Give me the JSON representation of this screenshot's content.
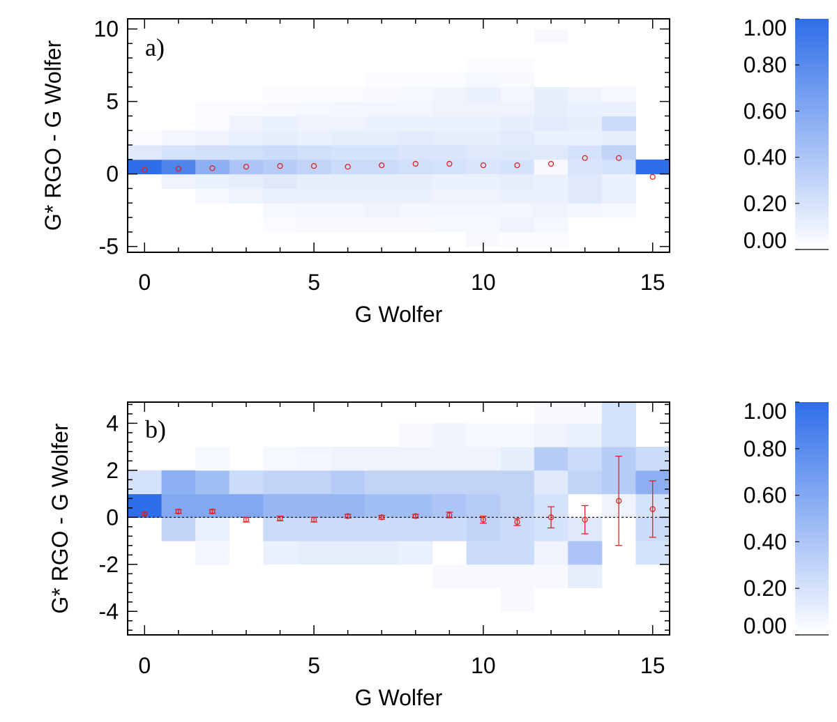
{
  "colors": {
    "cell": "#2f6ee9",
    "marker": "#e02020",
    "axis": "#000000"
  },
  "chart_data": [
    {
      "type": "heatmap",
      "panel_label": "a)",
      "xlabel": "G Wolfer",
      "ylabel": "G* RGO - G Wolfer",
      "xlim": [
        -0.5,
        15.5
      ],
      "ylim": [
        -5.4,
        10.7
      ],
      "xticks": [
        0,
        5,
        10,
        15
      ],
      "xtick_labels": [
        "0",
        "5",
        "10",
        "15"
      ],
      "yticks": [
        -5,
        0,
        5,
        10
      ],
      "ytick_labels": [
        "-5",
        "0",
        "5",
        "10"
      ],
      "cell_height": 1,
      "y_start": -5,
      "columns": [
        [
          0,
          0,
          0,
          0,
          0,
          1.0,
          0.15,
          0.03,
          0,
          0,
          0,
          0,
          0,
          0,
          0,
          0
        ],
        [
          0,
          0,
          0,
          0,
          0.08,
          0.85,
          0.2,
          0.06,
          0,
          0,
          0,
          0,
          0,
          0,
          0,
          0
        ],
        [
          0,
          0,
          0,
          0.05,
          0.1,
          0.55,
          0.22,
          0.08,
          0.03,
          0.03,
          0,
          0,
          0,
          0,
          0,
          0
        ],
        [
          0,
          0,
          0,
          0.08,
          0.12,
          0.4,
          0.22,
          0.1,
          0.08,
          0.03,
          0,
          0,
          0,
          0,
          0,
          0
        ],
        [
          0,
          0.03,
          0.05,
          0.1,
          0.15,
          0.35,
          0.25,
          0.12,
          0.1,
          0.04,
          0.02,
          0,
          0,
          0,
          0,
          0
        ],
        [
          0,
          0.04,
          0.06,
          0.1,
          0.12,
          0.3,
          0.22,
          0.1,
          0.08,
          0.05,
          0.03,
          0,
          0,
          0,
          0,
          0
        ],
        [
          0,
          0.04,
          0.06,
          0.1,
          0.12,
          0.25,
          0.2,
          0.12,
          0.08,
          0.06,
          0.03,
          0,
          0,
          0,
          0,
          0
        ],
        [
          0,
          0.04,
          0.07,
          0.1,
          0.12,
          0.25,
          0.2,
          0.12,
          0.1,
          0.06,
          0.04,
          0.02,
          0,
          0,
          0,
          0
        ],
        [
          0,
          0.04,
          0.06,
          0.1,
          0.12,
          0.22,
          0.18,
          0.14,
          0.1,
          0.06,
          0.05,
          0.03,
          0,
          0,
          0,
          0
        ],
        [
          0,
          0.05,
          0.06,
          0.08,
          0.1,
          0.2,
          0.18,
          0.12,
          0.1,
          0.08,
          0.07,
          0.03,
          0,
          0,
          0,
          0
        ],
        [
          0.04,
          0.05,
          0.06,
          0.08,
          0.1,
          0.18,
          0.15,
          0.12,
          0.1,
          0.08,
          0.1,
          0.05,
          0.02,
          0,
          0,
          0
        ],
        [
          0.02,
          0.08,
          0.06,
          0.1,
          0.12,
          0.2,
          0.16,
          0.14,
          0.12,
          0.08,
          0.06,
          0.04,
          0.02,
          0,
          0,
          0
        ],
        [
          0.02,
          0.05,
          0.08,
          0.1,
          0.1,
          0.04,
          0.15,
          0.1,
          0.14,
          0.12,
          0.12,
          0,
          0,
          0,
          0.04,
          0
        ],
        [
          0,
          0,
          0.06,
          0.15,
          0.15,
          0.18,
          0.2,
          0.1,
          0.12,
          0.1,
          0.08,
          0,
          0,
          0,
          0,
          0
        ],
        [
          0,
          0,
          0.05,
          0.1,
          0.1,
          0.2,
          0.3,
          0.12,
          0.25,
          0.1,
          0.05,
          0,
          0,
          0,
          0,
          0
        ],
        [
          0,
          0,
          0,
          0,
          0,
          1.0,
          0,
          0,
          0,
          0,
          0,
          0,
          0,
          0,
          0,
          0
        ]
      ],
      "points": {
        "x": [
          0,
          1,
          2,
          3,
          4,
          5,
          6,
          7,
          8,
          9,
          10,
          11,
          12,
          13,
          14,
          15
        ],
        "y": [
          0.3,
          0.35,
          0.4,
          0.5,
          0.55,
          0.55,
          0.5,
          0.6,
          0.7,
          0.7,
          0.6,
          0.6,
          0.7,
          1.1,
          1.1,
          -0.2
        ]
      },
      "colorbar": {
        "ticks": [
          0.0,
          0.2,
          0.4,
          0.6,
          0.8,
          1.0
        ],
        "labels": [
          "0.00",
          "0.20",
          "0.40",
          "0.60",
          "0.80",
          "1.00"
        ]
      }
    },
    {
      "type": "heatmap",
      "panel_label": "b)",
      "xlabel": "G Wolfer",
      "ylabel": "G* RGO - G Wolfer",
      "xlim": [
        -0.5,
        15.5
      ],
      "ylim": [
        -5,
        4.9
      ],
      "xticks": [
        0,
        5,
        10,
        15
      ],
      "xtick_labels": [
        "0",
        "5",
        "10",
        "15"
      ],
      "yticks": [
        -4,
        -2,
        0,
        2,
        4
      ],
      "ytick_labels": [
        "-4",
        "-2",
        "0",
        "2",
        "4"
      ],
      "cell_height": 1,
      "y_start": -4,
      "zero_line": true,
      "columns": [
        [
          0,
          0,
          0,
          0,
          1.0,
          0.2,
          0,
          0,
          0
        ],
        [
          0,
          0,
          0,
          0.3,
          0.6,
          0.55,
          0,
          0,
          0
        ],
        [
          0,
          0,
          0.06,
          0.1,
          0.6,
          0.45,
          0.05,
          0,
          0
        ],
        [
          0,
          0,
          0,
          0,
          0.6,
          0.25,
          0,
          0,
          0
        ],
        [
          0,
          0,
          0.1,
          0.25,
          0.5,
          0.3,
          0.05,
          0,
          0
        ],
        [
          0,
          0,
          0.12,
          0.25,
          0.5,
          0.3,
          0.06,
          0,
          0
        ],
        [
          0,
          0,
          0.12,
          0.25,
          0.5,
          0.35,
          0.08,
          0,
          0
        ],
        [
          0,
          0,
          0.12,
          0.25,
          0.45,
          0.3,
          0.08,
          0,
          0
        ],
        [
          0,
          0,
          0.1,
          0.25,
          0.45,
          0.3,
          0.08,
          0.04,
          0
        ],
        [
          0,
          0.04,
          0,
          0.25,
          0.4,
          0.3,
          0.08,
          0.07,
          0
        ],
        [
          0,
          0.04,
          0.25,
          0.3,
          0.35,
          0.3,
          0.08,
          0.05,
          0
        ],
        [
          0.04,
          0.04,
          0.25,
          0.25,
          0.3,
          0.3,
          0.12,
          0.05,
          0
        ],
        [
          0,
          0.04,
          0.08,
          0.2,
          0.2,
          0.15,
          0.35,
          0.08,
          0.04
        ],
        [
          0,
          0.12,
          0.4,
          0.15,
          0,
          0.3,
          0.25,
          0.1,
          0.04
        ],
        [
          0,
          0,
          0,
          0,
          0.08,
          0.35,
          0.35,
          0.2,
          0.2
        ],
        [
          0,
          0,
          0.2,
          0.25,
          0.2,
          0.55,
          0.25,
          0,
          0
        ]
      ],
      "points": {
        "x": [
          0,
          1,
          2,
          3,
          4,
          5,
          6,
          7,
          8,
          9,
          10,
          11,
          12,
          13,
          14,
          15
        ],
        "y": [
          0.15,
          0.25,
          0.25,
          -0.1,
          -0.05,
          -0.1,
          0.05,
          0,
          0.05,
          0.1,
          -0.1,
          -0.2,
          0,
          -0.1,
          0.7,
          0.35
        ],
        "err": [
          0.05,
          0.08,
          0.08,
          0.1,
          0.1,
          0.1,
          0.08,
          0.08,
          0.08,
          0.12,
          0.15,
          0.15,
          0.45,
          0.6,
          1.9,
          1.2
        ]
      },
      "colorbar": {
        "ticks": [
          0.0,
          0.2,
          0.4,
          0.6,
          0.8,
          1.0
        ],
        "labels": [
          "0.00",
          "0.20",
          "0.40",
          "0.60",
          "0.80",
          "1.00"
        ]
      }
    }
  ]
}
